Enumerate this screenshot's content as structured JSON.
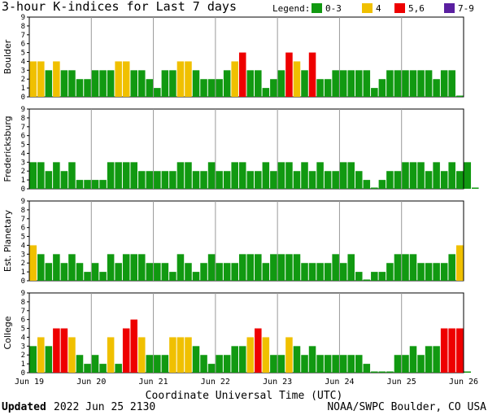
{
  "chart_data": {
    "type": "bar",
    "title": "3-hour K-indices for Last 7 days",
    "legend": {
      "title": "Legend:",
      "items": [
        {
          "label": "0-3",
          "color": "#119911"
        },
        {
          "label": "4",
          "color": "#f0c000"
        },
        {
          "label": "5,6",
          "color": "#ee0000"
        },
        {
          "label": "7-9",
          "color": "#5a1fa0"
        }
      ]
    },
    "xlabel": "Coordinate Universal Time (UTC)",
    "x_ticks": [
      "Jun 19",
      "Jun 20",
      "Jun 21",
      "Jun 22",
      "Jun 23",
      "Jun 24",
      "Jun 25",
      "Jun 26"
    ],
    "yticks": [
      0,
      1,
      2,
      3,
      4,
      5,
      6,
      7,
      8,
      9
    ],
    "ylim": [
      0,
      9
    ],
    "intervals_per_day": 8,
    "series": [
      {
        "name": "Boulder",
        "values": [
          4,
          4,
          3,
          4,
          3,
          3,
          2,
          2,
          3,
          3,
          3,
          4,
          4,
          3,
          3,
          2,
          1,
          3,
          3,
          4,
          4,
          3,
          2,
          2,
          2,
          3,
          4,
          5,
          3,
          3,
          1,
          2,
          3,
          5,
          4,
          3,
          5,
          2,
          2,
          3,
          3,
          3,
          3,
          3,
          1,
          2,
          3,
          3,
          3,
          3,
          3,
          3,
          2,
          3,
          3,
          0
        ]
      },
      {
        "name": "Fredericksburg",
        "values": [
          3,
          3,
          2,
          3,
          2,
          3,
          1,
          1,
          1,
          1,
          3,
          3,
          3,
          3,
          2,
          2,
          2,
          2,
          2,
          3,
          3,
          2,
          2,
          3,
          2,
          2,
          3,
          3,
          2,
          2,
          3,
          2,
          3,
          3,
          2,
          3,
          2,
          3,
          2,
          2,
          3,
          3,
          2,
          1,
          0,
          1,
          2,
          2,
          3,
          3,
          3,
          2,
          3,
          2,
          3,
          2,
          3,
          0
        ]
      },
      {
        "name": "Est. Planetary",
        "values": [
          4,
          3,
          2,
          3,
          2,
          3,
          2,
          1,
          2,
          1,
          3,
          2,
          3,
          3,
          3,
          2,
          2,
          2,
          1,
          3,
          2,
          1,
          2,
          3,
          2,
          2,
          2,
          3,
          3,
          3,
          2,
          3,
          3,
          3,
          3,
          2,
          2,
          2,
          2,
          3,
          2,
          3,
          1,
          0,
          1,
          1,
          2,
          3,
          3,
          3,
          2,
          2,
          2,
          2,
          3,
          4
        ]
      },
      {
        "name": "College",
        "values": [
          3,
          4,
          3,
          5,
          5,
          4,
          2,
          1,
          2,
          1,
          4,
          1,
          5,
          6,
          4,
          2,
          2,
          2,
          4,
          4,
          4,
          3,
          2,
          1,
          2,
          2,
          3,
          3,
          4,
          5,
          4,
          2,
          2,
          4,
          3,
          2,
          3,
          2,
          2,
          2,
          2,
          2,
          2,
          1,
          0,
          0,
          0,
          2,
          2,
          3,
          2,
          3,
          3,
          5,
          5,
          5,
          0
        ]
      }
    ]
  },
  "footer": {
    "updated_label": "Updated",
    "updated_value": "2022 Jun 25 2130",
    "credit": "NOAA/SWPC Boulder, CO USA"
  }
}
